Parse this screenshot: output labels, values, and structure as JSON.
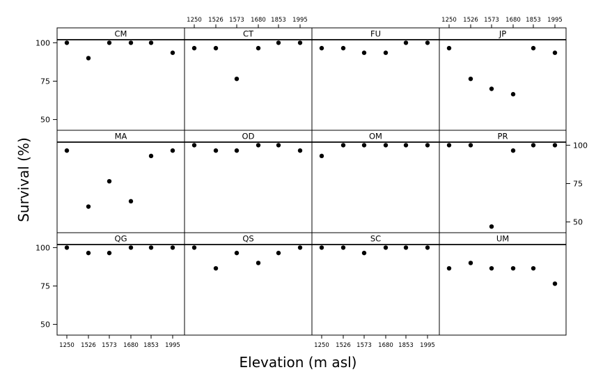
{
  "chart_data": {
    "type": "scatter",
    "layout": "trellis 3 rows x 4 columns",
    "xlabel": "Elevation (m asl)",
    "ylabel": "Survival (%)",
    "categories": [
      "1250",
      "1526",
      "1573",
      "1680",
      "1853",
      "1995"
    ],
    "yticks": [
      50,
      75,
      100
    ],
    "ylim": [
      43,
      102
    ],
    "grid": false,
    "panels": [
      {
        "name": "CM",
        "values": [
          100,
          90,
          100,
          100,
          100,
          93.5
        ]
      },
      {
        "name": "CT",
        "values": [
          96.5,
          96.5,
          76.5,
          96.5,
          100,
          100
        ]
      },
      {
        "name": "FU",
        "values": [
          96.5,
          96.5,
          93.5,
          93.5,
          100,
          100
        ]
      },
      {
        "name": "JP",
        "values": [
          96.5,
          76.5,
          70,
          66.5,
          96.5,
          93.5
        ]
      },
      {
        "name": "MA",
        "values": [
          96.5,
          60,
          76.5,
          63.5,
          93,
          96.5
        ]
      },
      {
        "name": "OD",
        "values": [
          100,
          96.5,
          96.5,
          100,
          100,
          96.5
        ]
      },
      {
        "name": "OM",
        "values": [
          93,
          100,
          100,
          100,
          100,
          100
        ]
      },
      {
        "name": "PR",
        "values": [
          100,
          100,
          47,
          96.5,
          100,
          100
        ]
      },
      {
        "name": "QG",
        "values": [
          100,
          96.5,
          96.5,
          100,
          100,
          100
        ]
      },
      {
        "name": "QS",
        "values": [
          100,
          86.5,
          96.5,
          90,
          96.5,
          100
        ]
      },
      {
        "name": "SC",
        "values": [
          100,
          100,
          96.5,
          100,
          100,
          100
        ]
      },
      {
        "name": "UM",
        "values": [
          86.5,
          90,
          86.5,
          86.5,
          86.5,
          76.5
        ]
      }
    ],
    "y_axis_left_rows": [
      0,
      2
    ],
    "y_axis_right_rows": [
      1
    ],
    "x_axis_top_columns": [
      1,
      3
    ],
    "x_axis_bottom_columns": [
      0,
      2
    ],
    "colors": {
      "point": "#000000",
      "frame": "#000000",
      "background": "#ffffff"
    }
  }
}
